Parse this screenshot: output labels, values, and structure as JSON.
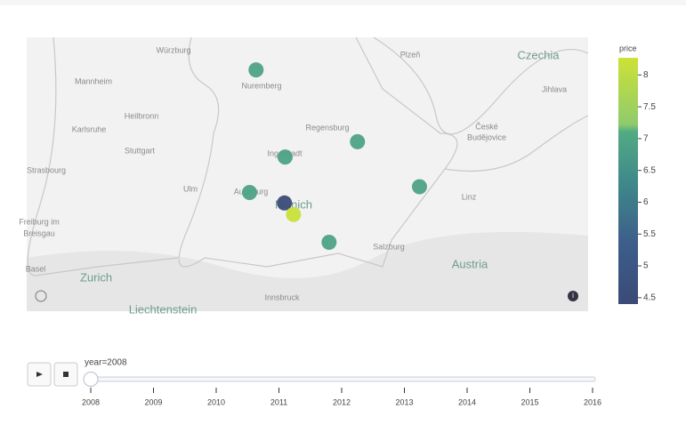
{
  "map": {
    "lon_range": [
      7.45,
      16.14
    ],
    "lat_range": [
      47.11,
      49.97
    ],
    "places": [
      "Würzburg",
      "Plzeň",
      "Czechia",
      "Mannheim",
      "Nuremberg",
      "Jihlava",
      "Heilbronn",
      "Regensburg",
      "České",
      "Budějovice",
      "Karlsruhe",
      "Stuttgart",
      "Ingolstadt",
      "Strasbourg",
      "Ulm",
      "Augsburg",
      "Linz",
      "Munich",
      "Freiburg im",
      "Breisgau",
      "Salzburg",
      "Austria",
      "Basel",
      "Zurich",
      "Innsbruck",
      "Liechtenstein"
    ],
    "points": [
      {
        "lon": 11.0,
        "lat": 49.63,
        "price": 6.9
      },
      {
        "lon": 12.57,
        "lat": 48.88,
        "price": 6.9
      },
      {
        "lon": 11.45,
        "lat": 48.72,
        "price": 6.9
      },
      {
        "lon": 10.9,
        "lat": 48.35,
        "price": 6.9
      },
      {
        "lon": 13.53,
        "lat": 48.41,
        "price": 6.9
      },
      {
        "lon": 11.44,
        "lat": 48.24,
        "price": 4.5
      },
      {
        "lon": 11.58,
        "lat": 48.12,
        "price": 8.2
      },
      {
        "lon": 12.13,
        "lat": 47.83,
        "price": 6.9
      }
    ],
    "colorbar": {
      "title": "price",
      "range": [
        4.4,
        8.27
      ],
      "ticks": [
        4.5,
        5,
        5.5,
        6,
        6.5,
        7,
        7.5,
        8
      ]
    }
  },
  "slider": {
    "current": "year=2008",
    "steps": [
      "2008",
      "2009",
      "2010",
      "2011",
      "2012",
      "2013",
      "2014",
      "2015",
      "2016"
    ]
  }
}
